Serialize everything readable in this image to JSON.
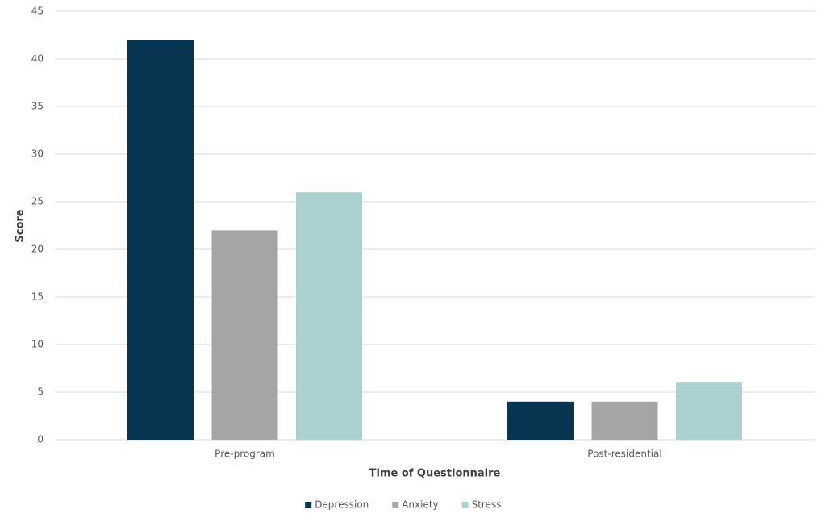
{
  "chart_data": {
    "type": "bar",
    "x_label": "Time of Questionnaire",
    "y_label": "Score",
    "categories": [
      "Pre-program",
      "Post-residential"
    ],
    "series": [
      {
        "name": "Depression",
        "color": "#063451",
        "values": [
          42,
          4
        ]
      },
      {
        "name": "Anxiety",
        "color": "#a5a5a5",
        "values": [
          22,
          4
        ]
      },
      {
        "name": "Stress",
        "color": "#abd1d0",
        "values": [
          26,
          6
        ]
      }
    ],
    "ylim": [
      0,
      45
    ],
    "yticks": [
      0,
      5,
      10,
      15,
      20,
      25,
      30,
      35,
      40,
      45
    ],
    "grid": true,
    "legend": "bottom"
  }
}
